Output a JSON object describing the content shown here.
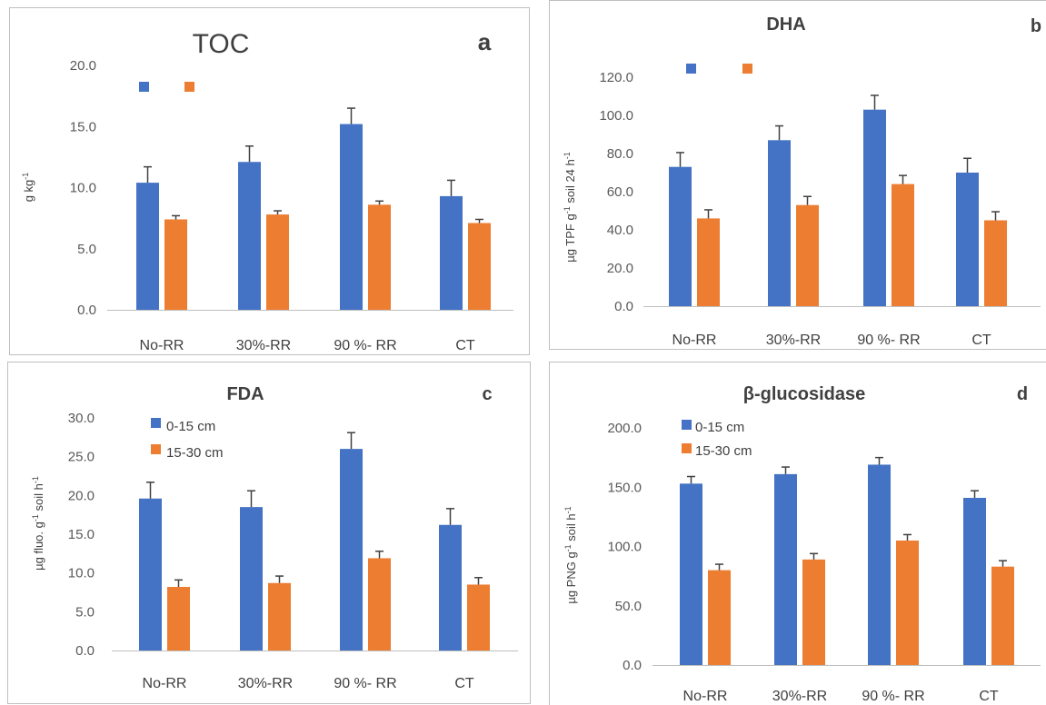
{
  "colors": {
    "series1": "#4472c4",
    "series2": "#ed7d31",
    "errbar": "#404040",
    "axis": "#bfbfbf",
    "frame": "#bfbfbf"
  },
  "chart_data": [
    {
      "type": "bar",
      "panel_letter": "a",
      "title": "TOC",
      "title_style": "normal",
      "ylabel": "g kg",
      "ylabel_sup": "-1",
      "ylim": [
        0,
        20
      ],
      "yticks": [
        0,
        5,
        10,
        15,
        20
      ],
      "ytick_labels": [
        "0.0",
        "5.0",
        "10.0",
        "15.0",
        "20.0"
      ],
      "categories": [
        "No-RR",
        "30%-RR",
        "90 %- RR",
        "CT"
      ],
      "series": [
        {
          "values": [
            10.4,
            12.1,
            15.2,
            9.3
          ],
          "errors": [
            1.3,
            1.3,
            1.3,
            1.3
          ]
        },
        {
          "values": [
            7.4,
            7.8,
            8.6,
            7.1
          ],
          "errors": [
            0.3,
            0.3,
            0.3,
            0.3
          ]
        }
      ],
      "legend_labels_shown": false
    },
    {
      "type": "bar",
      "panel_letter": "b",
      "title": "DHA",
      "title_style": "bold",
      "ylabel": "µg TPF g",
      "ylabel_sup": "-1",
      "ylabel_rest": " soil 24 h",
      "ylabel_sup2": "-1",
      "ylim": [
        0,
        120
      ],
      "yticks": [
        0,
        20,
        40,
        60,
        80,
        100,
        120
      ],
      "ytick_labels": [
        "0.0",
        "20.0",
        "40.0",
        "60.0",
        "80.0",
        "100.0",
        "120.0"
      ],
      "categories": [
        "No-RR",
        "30%-RR",
        "90 %- RR",
        "CT"
      ],
      "series": [
        {
          "values": [
            73,
            87,
            103,
            70
          ],
          "errors": [
            7.5,
            7.5,
            7.5,
            7.5
          ]
        },
        {
          "values": [
            46,
            53,
            64,
            45
          ],
          "errors": [
            4.5,
            4.5,
            4.5,
            4.5
          ]
        }
      ],
      "legend_labels_shown": false
    },
    {
      "type": "bar",
      "panel_letter": "c",
      "title": "FDA",
      "title_style": "bold",
      "ylabel": "µg fluo. g",
      "ylabel_sup": "-1",
      "ylabel_rest": " soil h",
      "ylabel_sup2": "-1",
      "ylim": [
        0,
        30
      ],
      "yticks": [
        0,
        5,
        10,
        15,
        20,
        25,
        30
      ],
      "ytick_labels": [
        "0.0",
        "5.0",
        "10.0",
        "15.0",
        "20.0",
        "25.0",
        "30.0"
      ],
      "categories": [
        "No-RR",
        "30%-RR",
        "90 %- RR",
        "CT"
      ],
      "series": [
        {
          "name": "0-15 cm",
          "values": [
            19.6,
            18.5,
            26.0,
            16.2
          ],
          "errors": [
            2.1,
            2.1,
            2.1,
            2.1
          ]
        },
        {
          "name": "15-30 cm",
          "values": [
            8.2,
            8.7,
            11.9,
            8.5
          ],
          "errors": [
            0.9,
            0.9,
            0.9,
            0.9
          ]
        }
      ],
      "legend_labels_shown": true
    },
    {
      "type": "bar",
      "panel_letter": "d",
      "title": "β-glucosidase",
      "title_style": "bold",
      "ylabel": "µg PNG g",
      "ylabel_sup": "-1",
      "ylabel_rest": " soil h",
      "ylabel_sup2": "-1",
      "ylim": [
        0,
        200
      ],
      "yticks": [
        0,
        50,
        100,
        150,
        200
      ],
      "ytick_labels": [
        "0.0",
        "50.0",
        "100.0",
        "150.0",
        "200.0"
      ],
      "categories": [
        "No-RR",
        "30%-RR",
        "90 %- RR",
        "CT"
      ],
      "series": [
        {
          "name": "0-15 cm",
          "values": [
            153,
            161,
            169,
            141
          ],
          "errors": [
            6,
            6,
            6,
            6
          ]
        },
        {
          "name": "15-30 cm",
          "values": [
            80,
            89,
            105,
            83
          ],
          "errors": [
            5,
            5,
            5,
            5
          ]
        }
      ],
      "legend_labels_shown": true
    }
  ]
}
